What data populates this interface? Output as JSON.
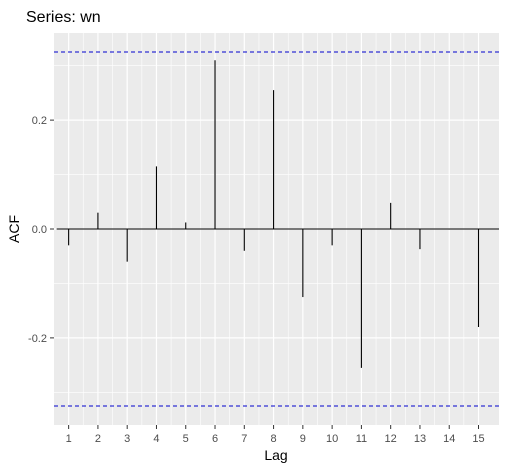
{
  "chart_data": {
    "type": "bar",
    "title": "Series: wn",
    "xlabel": "Lag",
    "ylabel": "ACF",
    "x": [
      1,
      2,
      3,
      4,
      5,
      6,
      7,
      8,
      9,
      10,
      11,
      12,
      13,
      14,
      15
    ],
    "values": [
      -0.03,
      0.03,
      -0.06,
      0.115,
      0.012,
      0.31,
      -0.04,
      0.255,
      -0.125,
      -0.03,
      -0.255,
      0.048,
      -0.037,
      -0.001,
      -0.18
    ],
    "confidence_limits": [
      -0.325,
      0.325
    ],
    "xlim": [
      0.5,
      15.7
    ],
    "ylim": [
      -0.36,
      0.36
    ],
    "y_ticks": [
      -0.2,
      0.0,
      0.2
    ],
    "y_tick_labels": [
      "-0.2",
      "0.0",
      "0.2"
    ],
    "x_tick_labels": [
      "1",
      "2",
      "3",
      "4",
      "5",
      "6",
      "7",
      "8",
      "9",
      "10",
      "11",
      "12",
      "13",
      "14",
      "15"
    ],
    "grid": true,
    "colors": {
      "panel_background": "#ebebeb",
      "grid": "#ffffff",
      "stem": "#000000",
      "confidence_line": "#0000cc",
      "zero_line": "#000000"
    }
  }
}
